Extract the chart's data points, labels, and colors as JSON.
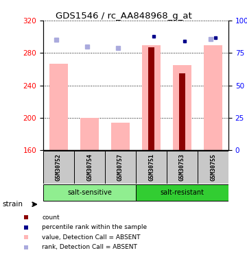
{
  "title": "GDS1546 / rc_AA848968_g_at",
  "samples": [
    "GSM30752",
    "GSM30754",
    "GSM30757",
    "GSM30751",
    "GSM30753",
    "GSM30755"
  ],
  "groups": [
    {
      "label": "salt-sensitive",
      "indices": [
        0,
        1,
        2
      ],
      "color": "#90EE90"
    },
    {
      "label": "salt-resistant",
      "indices": [
        3,
        4,
        5
      ],
      "color": "#32CD32"
    }
  ],
  "ylim_left": [
    160,
    320
  ],
  "ylim_right": [
    0,
    100
  ],
  "yticks_left": [
    160,
    200,
    240,
    280,
    320
  ],
  "yticks_right": [
    0,
    25,
    50,
    75,
    100
  ],
  "ytick_labels_right": [
    "0",
    "25",
    "50",
    "75",
    "100%"
  ],
  "pink_bar_values": [
    267,
    200,
    194,
    290,
    265,
    290
  ],
  "red_bar_values": [
    null,
    null,
    null,
    287,
    255,
    null
  ],
  "blue_square_values": [
    null,
    null,
    null,
    88,
    84,
    87
  ],
  "light_blue_square_values": [
    85,
    80,
    79,
    null,
    null,
    86
  ],
  "bar_bottom": 160,
  "pink_bar_color": "#FFB6B6",
  "red_bar_color": "#8B0000",
  "blue_square_color": "#00008B",
  "light_blue_square_color": "#AAAADD",
  "group_box_color": "#C8C8C8",
  "legend_items": [
    {
      "label": "count",
      "color": "#8B0000"
    },
    {
      "label": "percentile rank within the sample",
      "color": "#00008B"
    },
    {
      "label": "value, Detection Call = ABSENT",
      "color": "#FFB6B6"
    },
    {
      "label": "rank, Detection Call = ABSENT",
      "color": "#AAAADD"
    }
  ]
}
